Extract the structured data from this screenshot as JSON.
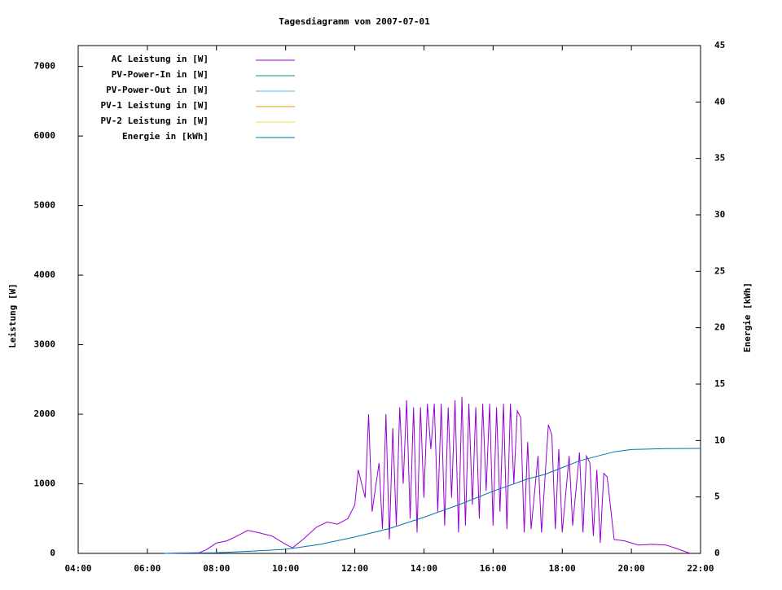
{
  "chart_data": {
    "type": "line",
    "title": "Tagesdiagramm vom 2007-07-01",
    "ylabel": "Leistung [W]",
    "y2label": "Energie [kWh]",
    "xlim": [
      4,
      22
    ],
    "xticks": [
      {
        "value": 4,
        "label": "04:00"
      },
      {
        "value": 6,
        "label": "06:00"
      },
      {
        "value": 8,
        "label": "08:00"
      },
      {
        "value": 10,
        "label": "10:00"
      },
      {
        "value": 12,
        "label": "12:00"
      },
      {
        "value": 14,
        "label": "14:00"
      },
      {
        "value": 16,
        "label": "16:00"
      },
      {
        "value": 18,
        "label": "18:00"
      },
      {
        "value": 20,
        "label": "20:00"
      },
      {
        "value": 22,
        "label": "22:00"
      }
    ],
    "ylim": [
      0,
      7300
    ],
    "yticks": [
      0,
      1000,
      2000,
      3000,
      4000,
      5000,
      6000,
      7000
    ],
    "y2lim": [
      0,
      45
    ],
    "y2ticks": [
      0,
      5,
      10,
      15,
      20,
      25,
      30,
      35,
      40,
      45
    ],
    "legend": "top-left",
    "series": [
      {
        "name": "AC Leistung in [W]",
        "color": "#9400d3",
        "x": [
          6.5,
          7.5,
          7.7,
          8.0,
          8.3,
          8.6,
          8.9,
          9.2,
          9.6,
          10.0,
          10.2,
          10.5,
          10.9,
          11.2,
          11.5,
          11.8,
          12.0,
          12.1,
          12.2,
          12.3,
          12.4,
          12.5,
          12.7,
          12.8,
          12.9,
          13.0,
          13.1,
          13.2,
          13.3,
          13.4,
          13.5,
          13.6,
          13.7,
          13.8,
          13.9,
          14.0,
          14.1,
          14.2,
          14.3,
          14.4,
          14.5,
          14.6,
          14.7,
          14.8,
          14.9,
          15.0,
          15.1,
          15.2,
          15.3,
          15.4,
          15.5,
          15.6,
          15.7,
          15.8,
          15.9,
          16.0,
          16.1,
          16.2,
          16.3,
          16.4,
          16.5,
          16.6,
          16.7,
          16.8,
          16.9,
          17.0,
          17.1,
          17.3,
          17.4,
          17.6,
          17.7,
          17.8,
          17.9,
          18.0,
          18.2,
          18.3,
          18.5,
          18.6,
          18.7,
          18.8,
          18.9,
          19.0,
          19.1,
          19.2,
          19.3,
          19.5,
          19.8,
          20.2,
          20.6,
          21.0,
          21.3,
          21.7
        ],
        "values": [
          0,
          10,
          50,
          150,
          180,
          250,
          330,
          300,
          250,
          130,
          80,
          200,
          380,
          450,
          420,
          500,
          700,
          1200,
          1000,
          800,
          2000,
          600,
          1300,
          350,
          2000,
          200,
          1800,
          400,
          2100,
          1000,
          2200,
          500,
          2100,
          300,
          2100,
          800,
          2150,
          1500,
          2150,
          600,
          2150,
          400,
          2100,
          800,
          2200,
          300,
          2250,
          400,
          2150,
          700,
          2100,
          500,
          2150,
          900,
          2150,
          400,
          2100,
          600,
          2150,
          350,
          2150,
          1000,
          2050,
          1950,
          300,
          1600,
          350,
          1400,
          300,
          1850,
          1700,
          350,
          1500,
          300,
          1400,
          400,
          1450,
          300,
          1400,
          1300,
          250,
          1200,
          150,
          1150,
          1100,
          200,
          180,
          120,
          130,
          120,
          70,
          0
        ]
      },
      {
        "name": "PV-Power-In in [W]",
        "color": "#009e73"
      },
      {
        "name": "PV-Power-Out in [W]",
        "color": "#56b4e9"
      },
      {
        "name": "PV-1 Leistung in [W]",
        "color": "#e69f00"
      },
      {
        "name": "PV-2 Leistung in [W]",
        "color": "#f0e442"
      },
      {
        "name": "Energie in [kWh]",
        "color": "#0072b2",
        "axis": "y2",
        "x": [
          6.5,
          8,
          9,
          10,
          11,
          12,
          13,
          14,
          15,
          16,
          17,
          17.5,
          18,
          18.5,
          19,
          19.5,
          20,
          21,
          22
        ],
        "values": [
          0,
          0.05,
          0.2,
          0.36,
          0.8,
          1.45,
          2.2,
          3.2,
          4.3,
          5.5,
          6.6,
          7.0,
          7.6,
          8.2,
          8.6,
          9.0,
          9.2,
          9.28,
          9.3
        ]
      }
    ]
  }
}
